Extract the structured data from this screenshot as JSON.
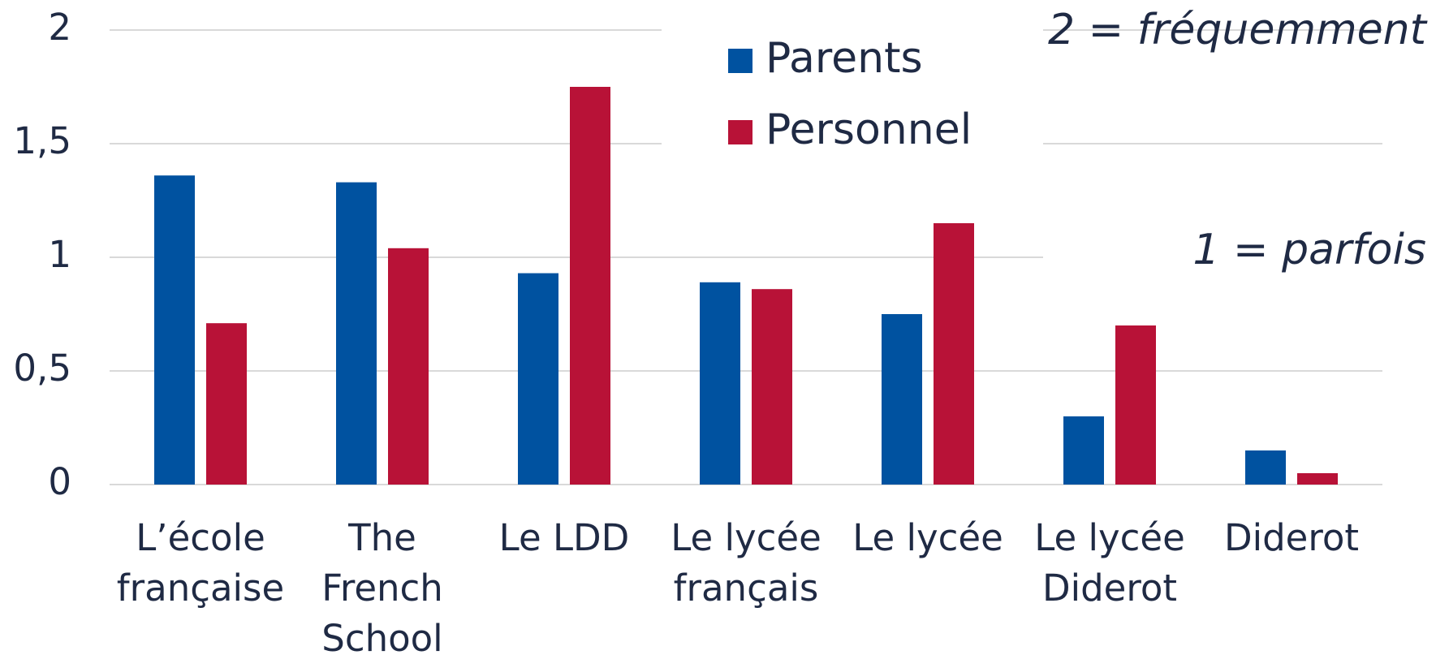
{
  "chart_data": {
    "type": "bar",
    "categories": [
      "L’école\nfrançaise",
      "The\nFrench\nSchool",
      "Le LDD",
      "Le lycée\nfrançais",
      "Le lycée",
      "Le lycée\nDiderot",
      "Diderot"
    ],
    "series": [
      {
        "name": "Parents",
        "color": "#0052a0",
        "values": [
          1.36,
          1.33,
          0.93,
          0.89,
          0.75,
          0.3,
          0.15
        ]
      },
      {
        "name": "Personnel",
        "color": "#b81237",
        "values": [
          0.71,
          1.04,
          1.75,
          0.86,
          1.15,
          0.7,
          0.05
        ]
      }
    ],
    "ylim": [
      0,
      2
    ],
    "yticks": [
      0,
      {
        "value": 0.5,
        "label": "0,5"
      },
      1,
      {
        "value": 1.5,
        "label": "1,5"
      },
      2
    ],
    "grid": true,
    "annotations": [
      "2 = fréquemment",
      "1 = parfois"
    ]
  }
}
